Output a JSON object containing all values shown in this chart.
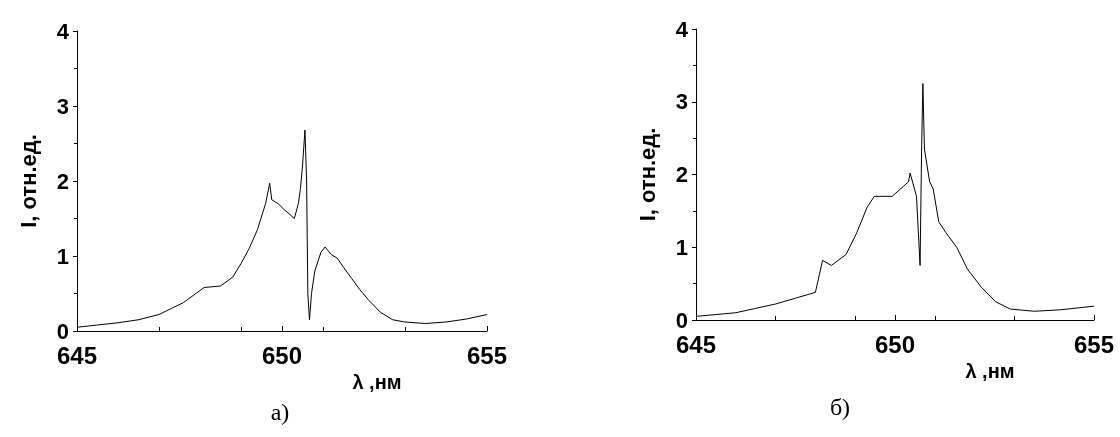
{
  "chart_data": [
    {
      "type": "line",
      "title": "а)",
      "xlabel": "λ ,нм",
      "ylabel": "I, отн.ед.",
      "xlim": [
        645,
        655
      ],
      "xticks": [
        645,
        650,
        655
      ],
      "ylim": [
        0,
        4
      ],
      "yticks": [
        0,
        1,
        2,
        3,
        4
      ],
      "marker": "none",
      "line_style": "solid",
      "series": [
        {
          "color": "#000000",
          "x": [
            645,
            645.5,
            646,
            646.5,
            647,
            647.3,
            647.6,
            647.9,
            648.1,
            648.5,
            648.8,
            649.0,
            649.2,
            649.4,
            649.6,
            649.7,
            649.75,
            649.9,
            650.05,
            650.2,
            650.3,
            650.4,
            650.45,
            650.5,
            650.56,
            650.6,
            650.63,
            650.67,
            650.72,
            650.8,
            650.95,
            651.05,
            651.2,
            651.35,
            651.5,
            651.7,
            651.9,
            652.1,
            652.4,
            652.7,
            653.0,
            653.5,
            654,
            654.5,
            655
          ],
          "values": [
            0.05,
            0.08,
            0.11,
            0.15,
            0.22,
            0.3,
            0.38,
            0.5,
            0.58,
            0.6,
            0.72,
            0.9,
            1.1,
            1.35,
            1.7,
            1.97,
            1.75,
            1.7,
            1.62,
            1.55,
            1.5,
            1.7,
            1.9,
            2.2,
            2.68,
            2.0,
            0.5,
            0.15,
            0.5,
            0.8,
            1.05,
            1.12,
            1.02,
            0.97,
            0.85,
            0.7,
            0.55,
            0.42,
            0.25,
            0.15,
            0.12,
            0.1,
            0.12,
            0.16,
            0.22
          ]
        }
      ]
    },
    {
      "type": "line",
      "title": "б)",
      "xlabel": "λ ,нм",
      "ylabel": "I, отн.ед.",
      "xlim": [
        645,
        655
      ],
      "xticks": [
        645,
        650,
        655
      ],
      "ylim": [
        0,
        4
      ],
      "yticks": [
        0,
        1,
        2,
        3,
        4
      ],
      "marker": "none",
      "line_style": "solid",
      "series": [
        {
          "color": "#000000",
          "x": [
            645,
            646,
            646.5,
            647,
            647.5,
            648.0,
            648.18,
            648.4,
            648.77,
            649.04,
            649.3,
            649.48,
            649.93,
            650.34,
            650.38,
            650.54,
            650.63,
            650.67,
            650.7,
            650.74,
            650.87,
            650.96,
            651.1,
            651.28,
            651.55,
            651.82,
            652.17,
            652.53,
            652.9,
            653.5,
            654.15,
            655
          ],
          "values": [
            0.05,
            0.1,
            0.16,
            0.22,
            0.3,
            0.38,
            0.82,
            0.75,
            0.9,
            1.2,
            1.55,
            1.7,
            1.7,
            1.9,
            2.02,
            1.7,
            0.75,
            2.4,
            3.25,
            2.35,
            1.9,
            1.8,
            1.35,
            1.2,
            1.0,
            0.7,
            0.45,
            0.25,
            0.15,
            0.12,
            0.14,
            0.19
          ]
        }
      ]
    }
  ]
}
